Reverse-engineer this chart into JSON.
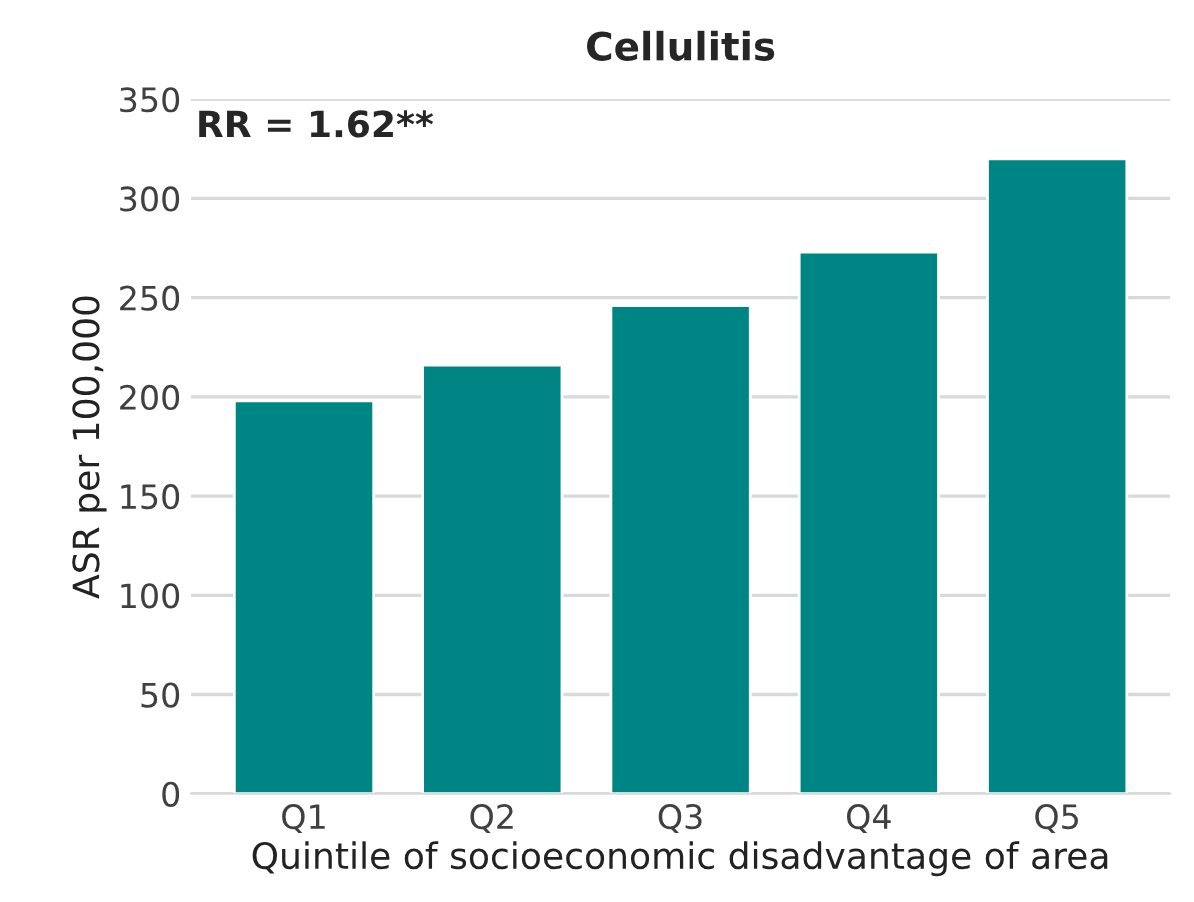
{
  "chart_data": {
    "type": "bar",
    "title": "Cellulitis",
    "xlabel": "Quintile of socioeconomic disadvantage of area",
    "ylabel": "ASR per 100,000",
    "categories": [
      "Q1",
      "Q2",
      "Q3",
      "Q4",
      "Q5"
    ],
    "series": [
      {
        "color": "#008585",
        "values": [
          198,
          216,
          246,
          273,
          320
        ]
      }
    ],
    "ylim": [
      0,
      350
    ],
    "yticks": [
      0,
      50,
      100,
      150,
      200,
      250,
      300,
      350
    ],
    "grid": "y",
    "legend": false,
    "annotations": [
      "RR = 1.62**"
    ]
  }
}
